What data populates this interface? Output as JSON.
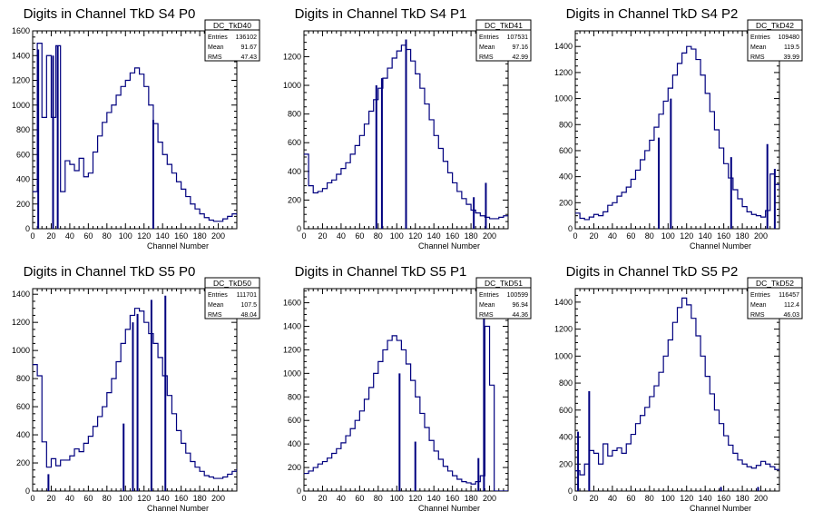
{
  "page": {
    "title": ""
  },
  "chart_data": [
    {
      "type": "histogram",
      "title": "Digits in Channel TkD S4 P0",
      "xlabel": "Channel Number",
      "ylabel": "",
      "xlim": [
        0,
        220
      ],
      "ylim": [
        0,
        1600
      ],
      "xticks": [
        0,
        20,
        40,
        60,
        80,
        100,
        120,
        140,
        160,
        180,
        200
      ],
      "yticks": [
        200,
        400,
        600,
        800,
        1000,
        1200,
        1400,
        1600
      ],
      "stats": {
        "name": "DC_TkD40",
        "rows": [
          {
            "label": "Entries",
            "value": "136102"
          },
          {
            "label": "Mean",
            "value": "91.67"
          },
          {
            "label": "RMS",
            "value": "47.43"
          }
        ]
      },
      "series": [
        {
          "x": [
            0,
            5,
            10,
            15,
            20,
            25,
            30,
            35,
            40,
            45,
            50,
            55,
            60,
            65,
            70,
            75,
            80,
            85,
            90,
            95,
            100,
            105,
            110,
            115,
            120,
            125,
            130,
            135,
            140,
            145,
            150,
            155,
            160,
            165,
            170,
            175,
            180,
            185,
            190,
            195,
            200,
            205,
            210,
            215,
            220
          ],
          "y": [
            300,
            1500,
            900,
            1400,
            900,
            1480,
            300,
            550,
            520,
            470,
            570,
            420,
            450,
            620,
            750,
            860,
            940,
            1000,
            1080,
            1150,
            1200,
            1260,
            1300,
            1250,
            1150,
            1000,
            850,
            700,
            600,
            520,
            450,
            380,
            320,
            260,
            200,
            160,
            120,
            90,
            70,
            60,
            60,
            80,
            100,
            120,
            110
          ]
        }
      ],
      "spikes": [
        {
          "x": 6,
          "y": 1450
        },
        {
          "x": 22,
          "y": 1400
        },
        {
          "x": 27,
          "y": 1480
        },
        {
          "x": 130,
          "y": 880
        }
      ]
    },
    {
      "type": "histogram",
      "title": "Digits in Channel TkD S4 P1",
      "xlabel": "Channel Number",
      "ylabel": "",
      "xlim": [
        0,
        220
      ],
      "ylim": [
        0,
        1380
      ],
      "xticks": [
        0,
        20,
        40,
        60,
        80,
        100,
        120,
        140,
        160,
        180,
        200
      ],
      "yticks": [
        200,
        400,
        600,
        800,
        1000,
        1200
      ],
      "stats": {
        "name": "DC_TkD41",
        "rows": [
          {
            "label": "Entries",
            "value": "107531"
          },
          {
            "label": "Mean",
            "value": "97.16"
          },
          {
            "label": "RMS",
            "value": "42.99"
          }
        ]
      },
      "series": [
        {
          "x": [
            0,
            5,
            10,
            15,
            20,
            25,
            30,
            35,
            40,
            45,
            50,
            55,
            60,
            65,
            70,
            75,
            80,
            85,
            90,
            95,
            100,
            105,
            110,
            115,
            120,
            125,
            130,
            135,
            140,
            145,
            150,
            155,
            160,
            165,
            170,
            175,
            180,
            185,
            190,
            195,
            200,
            205,
            210,
            215,
            220
          ],
          "y": [
            520,
            300,
            250,
            260,
            280,
            320,
            340,
            380,
            420,
            460,
            520,
            580,
            650,
            730,
            820,
            900,
            980,
            1050,
            1120,
            1190,
            1240,
            1280,
            1250,
            1170,
            1080,
            980,
            870,
            760,
            650,
            560,
            470,
            390,
            320,
            260,
            210,
            170,
            130,
            110,
            90,
            80,
            70,
            70,
            80,
            90,
            90
          ]
        }
      ],
      "spikes": [
        {
          "x": 78,
          "y": 1000
        },
        {
          "x": 84,
          "y": 1050
        },
        {
          "x": 110,
          "y": 1320
        },
        {
          "x": 183,
          "y": 220
        },
        {
          "x": 196,
          "y": 320
        }
      ]
    },
    {
      "type": "histogram",
      "title": "Digits in Channel TkD S4 P2",
      "xlabel": "Channel Number",
      "ylabel": "",
      "xlim": [
        0,
        220
      ],
      "ylim": [
        0,
        1520
      ],
      "xticks": [
        0,
        20,
        40,
        60,
        80,
        100,
        120,
        140,
        160,
        180,
        200
      ],
      "yticks": [
        200,
        400,
        600,
        800,
        1000,
        1200,
        1400
      ],
      "stats": {
        "name": "DC_TkD42",
        "rows": [
          {
            "label": "Entries",
            "value": "109480"
          },
          {
            "label": "Mean",
            "value": "119.5"
          },
          {
            "label": "RMS",
            "value": "39.99"
          }
        ]
      },
      "series": [
        {
          "x": [
            0,
            5,
            10,
            15,
            20,
            25,
            30,
            35,
            40,
            45,
            50,
            55,
            60,
            65,
            70,
            75,
            80,
            85,
            90,
            95,
            100,
            105,
            110,
            115,
            120,
            125,
            130,
            135,
            140,
            145,
            150,
            155,
            160,
            165,
            170,
            175,
            180,
            185,
            190,
            195,
            200,
            205,
            210,
            215,
            220
          ],
          "y": [
            120,
            80,
            70,
            90,
            110,
            100,
            130,
            180,
            200,
            250,
            280,
            320,
            380,
            450,
            530,
            600,
            680,
            780,
            880,
            980,
            1080,
            1180,
            1270,
            1350,
            1400,
            1380,
            1300,
            1180,
            1040,
            900,
            760,
            620,
            500,
            390,
            300,
            230,
            170,
            130,
            110,
            100,
            90,
            140,
            420,
            340,
            300
          ]
        }
      ],
      "spikes": [
        {
          "x": 90,
          "y": 700
        },
        {
          "x": 103,
          "y": 1000
        },
        {
          "x": 168,
          "y": 550
        },
        {
          "x": 207,
          "y": 650
        },
        {
          "x": 215,
          "y": 460
        }
      ]
    },
    {
      "type": "histogram",
      "title": "Digits in Channel TkD S5 P0",
      "xlabel": "Channel Number",
      "ylabel": "",
      "xlim": [
        0,
        220
      ],
      "ylim": [
        0,
        1440
      ],
      "xticks": [
        0,
        20,
        40,
        60,
        80,
        100,
        120,
        140,
        160,
        180,
        200
      ],
      "yticks": [
        200,
        400,
        600,
        800,
        1000,
        1200,
        1400
      ],
      "stats": {
        "name": "DC_TkD50",
        "rows": [
          {
            "label": "Entries",
            "value": "111701"
          },
          {
            "label": "Mean",
            "value": "107.5"
          },
          {
            "label": "RMS",
            "value": "48.04"
          }
        ]
      },
      "series": [
        {
          "x": [
            0,
            5,
            10,
            15,
            20,
            25,
            30,
            35,
            40,
            45,
            50,
            55,
            60,
            65,
            70,
            75,
            80,
            85,
            90,
            95,
            100,
            105,
            110,
            115,
            120,
            125,
            130,
            135,
            140,
            145,
            150,
            155,
            160,
            165,
            170,
            175,
            180,
            185,
            190,
            195,
            200,
            205,
            210,
            215,
            220
          ],
          "y": [
            900,
            820,
            350,
            170,
            230,
            180,
            220,
            220,
            250,
            300,
            280,
            340,
            390,
            460,
            530,
            600,
            700,
            800,
            920,
            1050,
            1150,
            1250,
            1300,
            1280,
            1200,
            1120,
            1050,
            950,
            820,
            680,
            550,
            430,
            340,
            270,
            210,
            170,
            140,
            110,
            100,
            90,
            90,
            100,
            120,
            140,
            160
          ]
        }
      ],
      "spikes": [
        {
          "x": 17,
          "y": 120
        },
        {
          "x": 98,
          "y": 480
        },
        {
          "x": 108,
          "y": 1200
        },
        {
          "x": 113,
          "y": 1260
        },
        {
          "x": 128,
          "y": 1360
        },
        {
          "x": 143,
          "y": 1390
        }
      ]
    },
    {
      "type": "histogram",
      "title": "Digits in Channel TkD S5 P1",
      "xlabel": "Channel Number",
      "ylabel": "",
      "xlim": [
        0,
        220
      ],
      "ylim": [
        0,
        1720
      ],
      "xticks": [
        0,
        20,
        40,
        60,
        80,
        100,
        120,
        140,
        160,
        180,
        200
      ],
      "yticks": [
        200,
        400,
        600,
        800,
        1000,
        1200,
        1400,
        1600
      ],
      "stats": {
        "name": "DC_TkD51",
        "rows": [
          {
            "label": "Entries",
            "value": "100599"
          },
          {
            "label": "Mean",
            "value": "96.94"
          },
          {
            "label": "RMS",
            "value": "44.36"
          }
        ]
      },
      "series": [
        {
          "x": [
            0,
            5,
            10,
            15,
            20,
            25,
            30,
            35,
            40,
            45,
            50,
            55,
            60,
            65,
            70,
            75,
            80,
            85,
            90,
            95,
            100,
            105,
            110,
            115,
            120,
            125,
            130,
            135,
            140,
            145,
            150,
            155,
            160,
            165,
            170,
            175,
            180,
            185,
            190,
            195,
            200,
            205,
            210,
            215,
            220
          ],
          "y": [
            150,
            170,
            200,
            230,
            250,
            280,
            320,
            360,
            410,
            470,
            530,
            600,
            680,
            780,
            880,
            1000,
            1100,
            1200,
            1280,
            1320,
            1280,
            1200,
            1080,
            940,
            800,
            660,
            540,
            430,
            340,
            270,
            210,
            170,
            130,
            100,
            80,
            70,
            60,
            80,
            130,
            1400,
            900,
            0,
            0,
            0,
            0
          ]
        }
      ],
      "spikes": [
        {
          "x": 103,
          "y": 1000
        },
        {
          "x": 120,
          "y": 420
        },
        {
          "x": 188,
          "y": 280
        },
        {
          "x": 194,
          "y": 1650
        }
      ]
    },
    {
      "type": "histogram",
      "title": "Digits in Channel TkD S5 P2",
      "xlabel": "Channel Number",
      "ylabel": "",
      "xlim": [
        0,
        220
      ],
      "ylim": [
        0,
        1500
      ],
      "xticks": [
        0,
        20,
        40,
        60,
        80,
        100,
        120,
        140,
        160,
        180,
        200
      ],
      "yticks": [
        200,
        400,
        600,
        800,
        1000,
        1200,
        1400
      ],
      "stats": {
        "name": "DC_TkD52",
        "rows": [
          {
            "label": "Entries",
            "value": "116457"
          },
          {
            "label": "Mean",
            "value": "112.4"
          },
          {
            "label": "RMS",
            "value": "46.03"
          }
        ]
      },
      "series": [
        {
          "x": [
            0,
            5,
            10,
            15,
            20,
            25,
            30,
            35,
            40,
            45,
            50,
            55,
            60,
            65,
            70,
            75,
            80,
            85,
            90,
            95,
            100,
            105,
            110,
            115,
            120,
            125,
            130,
            135,
            140,
            145,
            150,
            155,
            160,
            165,
            170,
            175,
            180,
            185,
            190,
            195,
            200,
            205,
            210,
            215,
            220
          ],
          "y": [
            150,
            120,
            200,
            300,
            280,
            200,
            350,
            260,
            300,
            320,
            280,
            350,
            420,
            500,
            560,
            620,
            700,
            780,
            880,
            1000,
            1120,
            1250,
            1360,
            1430,
            1380,
            1280,
            1150,
            1000,
            850,
            720,
            600,
            500,
            410,
            340,
            280,
            230,
            200,
            180,
            170,
            190,
            220,
            200,
            180,
            160,
            150
          ]
        }
      ],
      "spikes": [
        {
          "x": 3,
          "y": 440
        },
        {
          "x": 15,
          "y": 740
        },
        {
          "x": 157,
          "y": 30
        },
        {
          "x": 197,
          "y": 30
        }
      ]
    }
  ]
}
